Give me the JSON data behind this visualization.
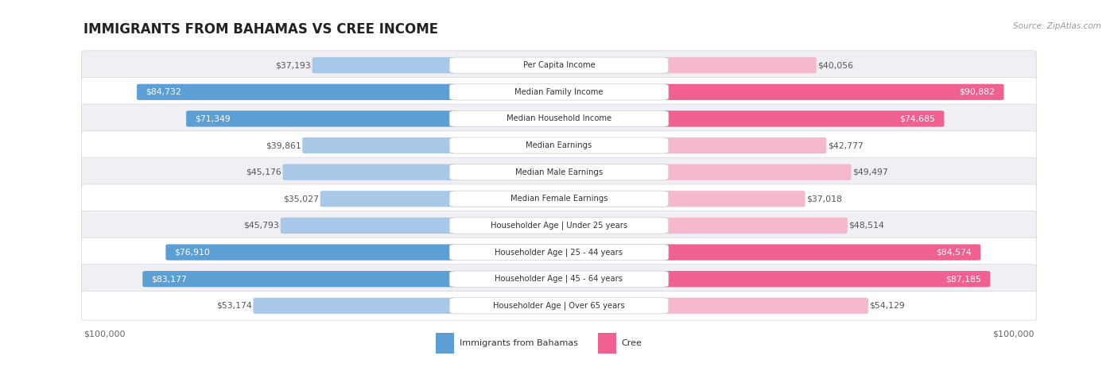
{
  "title": "IMMIGRANTS FROM BAHAMAS VS CREE INCOME",
  "source": "Source: ZipAtlas.com",
  "categories": [
    "Per Capita Income",
    "Median Family Income",
    "Median Household Income",
    "Median Earnings",
    "Median Male Earnings",
    "Median Female Earnings",
    "Householder Age | Under 25 years",
    "Householder Age | 25 - 44 years",
    "Householder Age | 45 - 64 years",
    "Householder Age | Over 65 years"
  ],
  "left_values": [
    37193,
    84732,
    71349,
    39861,
    45176,
    35027,
    45793,
    76910,
    83177,
    53174
  ],
  "right_values": [
    40056,
    90882,
    74685,
    42777,
    49497,
    37018,
    48514,
    84574,
    87185,
    54129
  ],
  "left_labels": [
    "$37,193",
    "$84,732",
    "$71,349",
    "$39,861",
    "$45,176",
    "$35,027",
    "$45,793",
    "$76,910",
    "$83,177",
    "$53,174"
  ],
  "right_labels": [
    "$40,056",
    "$90,882",
    "$74,685",
    "$42,777",
    "$49,497",
    "$37,018",
    "$48,514",
    "$84,574",
    "$87,185",
    "$54,129"
  ],
  "max_value": 100000,
  "left_color_low": "#a8c8e8",
  "left_color_high": "#5b9fd4",
  "right_color_low": "#f5b8cc",
  "right_color_high": "#f06090",
  "high_threshold": 60000,
  "label_inside_color": "#ffffff",
  "label_outside_color": "#555555",
  "legend_left": "Immigrants from Bahamas",
  "legend_right": "Cree",
  "xlabel_left": "$100,000",
  "xlabel_right": "$100,000",
  "row_colors": [
    "#f0f0f4",
    "#ffffff",
    "#f0f0f4",
    "#ffffff",
    "#f0f0f4",
    "#ffffff",
    "#f0f0f4",
    "#ffffff",
    "#f0f0f4",
    "#ffffff"
  ],
  "row_border_color": "#d8d8e0"
}
